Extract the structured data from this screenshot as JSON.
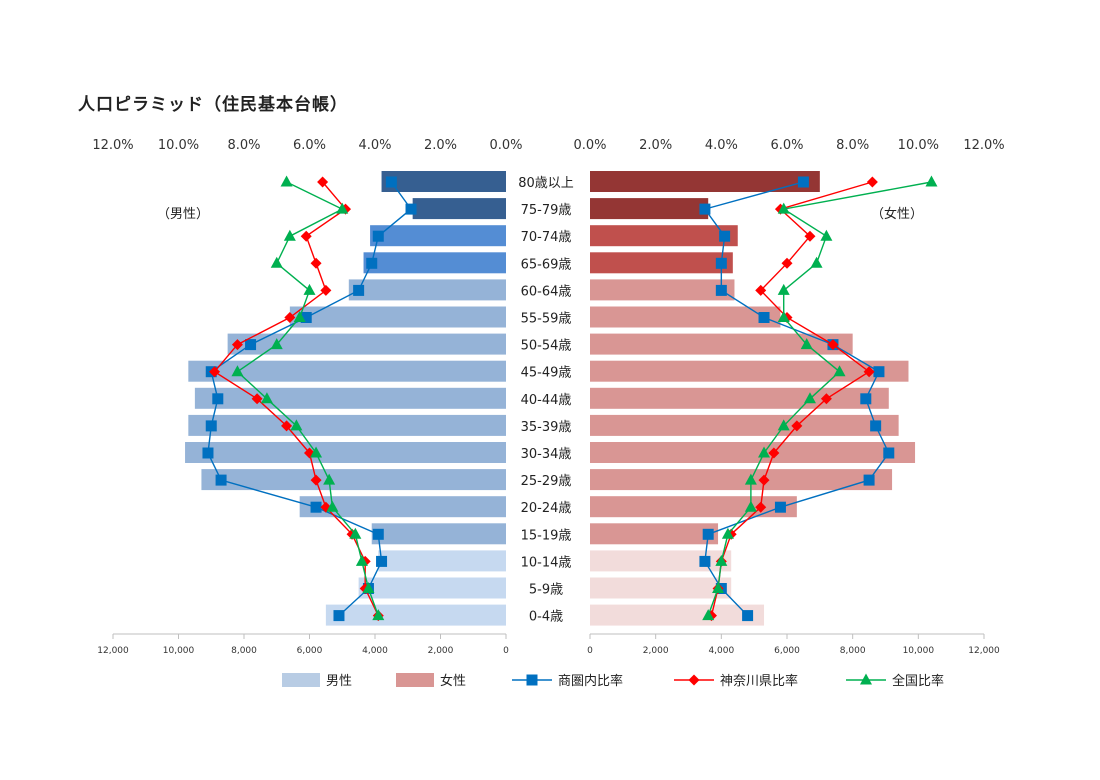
{
  "page": {
    "title": "人口ピラミッド（住民基本台帳）"
  },
  "chart_data": {
    "type": "bar",
    "title": "人口ピラミッド（住民基本台帳）",
    "categories": [
      "80歳以上",
      "75-79歳",
      "70-74歳",
      "65-69歳",
      "60-64歳",
      "55-59歳",
      "50-54歳",
      "45-49歳",
      "40-44歳",
      "35-39歳",
      "30-34歳",
      "25-29歳",
      "20-24歳",
      "15-19歳",
      "10-14歳",
      "5-9歳",
      "0-4歳"
    ],
    "side_labels": {
      "male": "（男性）",
      "female": "（女性）"
    },
    "percent_axis": {
      "range": [
        0,
        12
      ],
      "ticks": [
        "0.0%",
        "2.0%",
        "4.0%",
        "6.0%",
        "8.0%",
        "10.0%",
        "12.0%"
      ]
    },
    "count_axis": {
      "range": [
        0,
        12000
      ],
      "ticks": [
        "0",
        "2,000",
        "4,000",
        "6,000",
        "8,000",
        "10,000",
        "12,000"
      ]
    },
    "bars": [
      {
        "name": "男性",
        "side": "left",
        "legend_color": "#b8cce4",
        "values": [
          3800,
          2850,
          4150,
          4350,
          4800,
          6600,
          8500,
          9700,
          9500,
          9700,
          9800,
          9300,
          6300,
          4100,
          3900,
          4500,
          5500
        ],
        "colors": [
          "#365f91",
          "#365f91",
          "#548dd4",
          "#548dd4",
          "#95b3d7",
          "#95b3d7",
          "#95b3d7",
          "#95b3d7",
          "#95b3d7",
          "#95b3d7",
          "#95b3d7",
          "#95b3d7",
          "#95b3d7",
          "#95b3d7",
          "#c6d9f0",
          "#c6d9f0",
          "#c6d9f0"
        ]
      },
      {
        "name": "女性",
        "side": "right",
        "legend_color": "#d99694",
        "values": [
          7000,
          3600,
          4500,
          4350,
          4400,
          5800,
          8000,
          9700,
          9100,
          9400,
          9900,
          9200,
          6300,
          3900,
          4300,
          4300,
          5300
        ],
        "colors": [
          "#943634",
          "#943634",
          "#c0504d",
          "#c0504d",
          "#d99694",
          "#d99694",
          "#d99694",
          "#d99694",
          "#d99694",
          "#d99694",
          "#d99694",
          "#d99694",
          "#d99694",
          "#d99694",
          "#f2dcdb",
          "#f2dcdb",
          "#f2dcdb"
        ]
      }
    ],
    "series": [
      {
        "name": "商圏内比率",
        "color": "#0070c0",
        "marker": "square",
        "male": [
          3.5,
          2.9,
          3.9,
          4.1,
          4.5,
          6.1,
          7.8,
          9.0,
          8.8,
          9.0,
          9.1,
          8.7,
          5.8,
          3.9,
          3.8,
          4.2,
          5.1
        ],
        "female": [
          6.5,
          3.5,
          4.1,
          4.0,
          4.0,
          5.3,
          7.4,
          8.8,
          8.4,
          8.7,
          9.1,
          8.5,
          5.8,
          3.6,
          3.5,
          4.0,
          4.8
        ]
      },
      {
        "name": "神奈川県比率",
        "color": "#ff0000",
        "marker": "diamond",
        "male": [
          5.6,
          4.9,
          6.1,
          5.8,
          5.5,
          6.6,
          8.2,
          8.9,
          7.6,
          6.7,
          6.0,
          5.8,
          5.5,
          4.7,
          4.3,
          4.3,
          3.9
        ],
        "female": [
          8.6,
          5.8,
          6.7,
          6.0,
          5.2,
          6.0,
          7.4,
          8.5,
          7.2,
          6.3,
          5.6,
          5.3,
          5.2,
          4.3,
          4.0,
          3.9,
          3.7
        ]
      },
      {
        "name": "全国比率",
        "color": "#00b050",
        "marker": "triangle",
        "male": [
          6.7,
          5.0,
          6.6,
          7.0,
          6.0,
          6.3,
          7.0,
          8.2,
          7.3,
          6.4,
          5.8,
          5.4,
          5.3,
          4.6,
          4.4,
          4.2,
          3.9
        ],
        "female": [
          10.4,
          5.9,
          7.2,
          6.9,
          5.9,
          5.9,
          6.6,
          7.6,
          6.7,
          5.9,
          5.3,
          4.9,
          4.9,
          4.2,
          4.0,
          3.9,
          3.6
        ]
      }
    ],
    "legend": {
      "position": "bottom"
    },
    "grid": false
  }
}
